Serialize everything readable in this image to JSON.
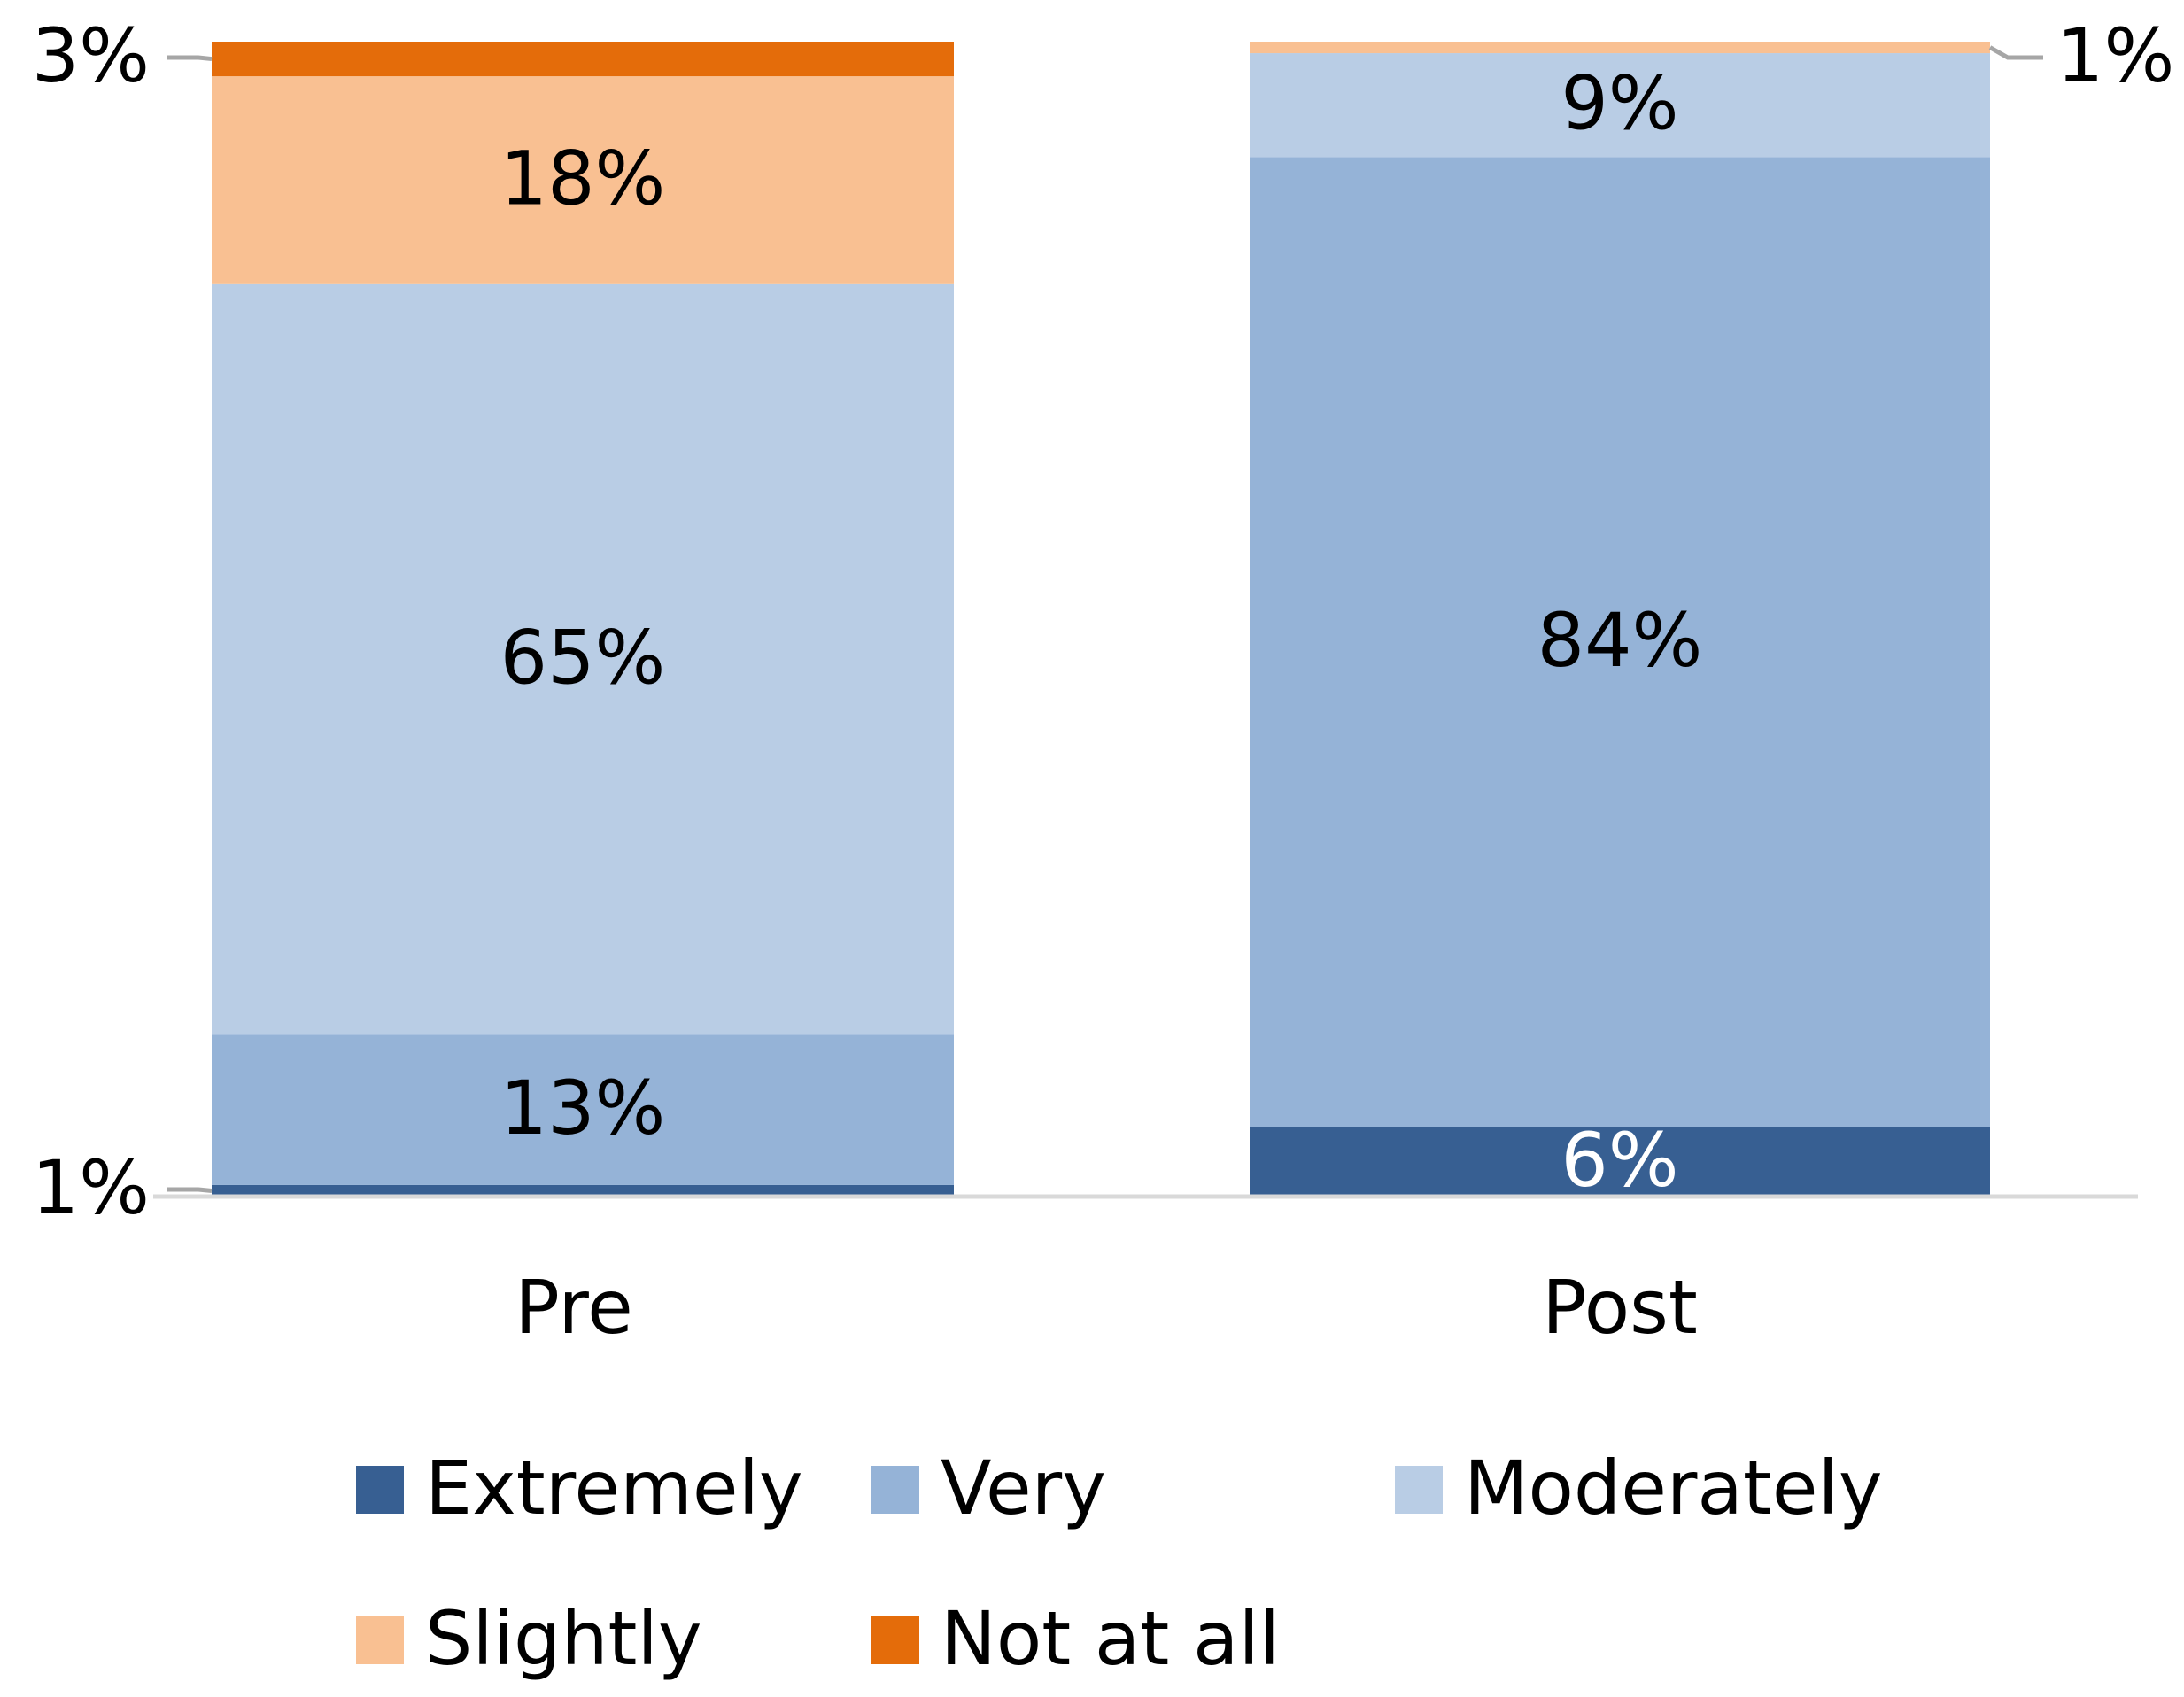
{
  "chart_data": {
    "type": "stacked_bar",
    "categories": [
      "Pre",
      "Post"
    ],
    "ylim": [
      0,
      100
    ],
    "series": [
      {
        "name": "Extremely",
        "color": "#375f92",
        "values": [
          1,
          6
        ],
        "value_labels": [
          "1%",
          "6%"
        ]
      },
      {
        "name": "Very",
        "color": "#95b3d7",
        "values": [
          13,
          84
        ],
        "value_labels": [
          "13%",
          "84%"
        ]
      },
      {
        "name": "Moderately",
        "color": "#b9cde5",
        "values": [
          65,
          9
        ],
        "value_labels": [
          "65%",
          "9%"
        ]
      },
      {
        "name": "Slightly",
        "color": "#f9c092",
        "values": [
          18,
          1
        ],
        "value_labels": [
          "18%",
          "1%"
        ]
      },
      {
        "name": "Not at all",
        "color": "#e46c0a",
        "values": [
          3,
          0
        ],
        "value_labels": [
          "3%",
          null
        ]
      }
    ]
  }
}
